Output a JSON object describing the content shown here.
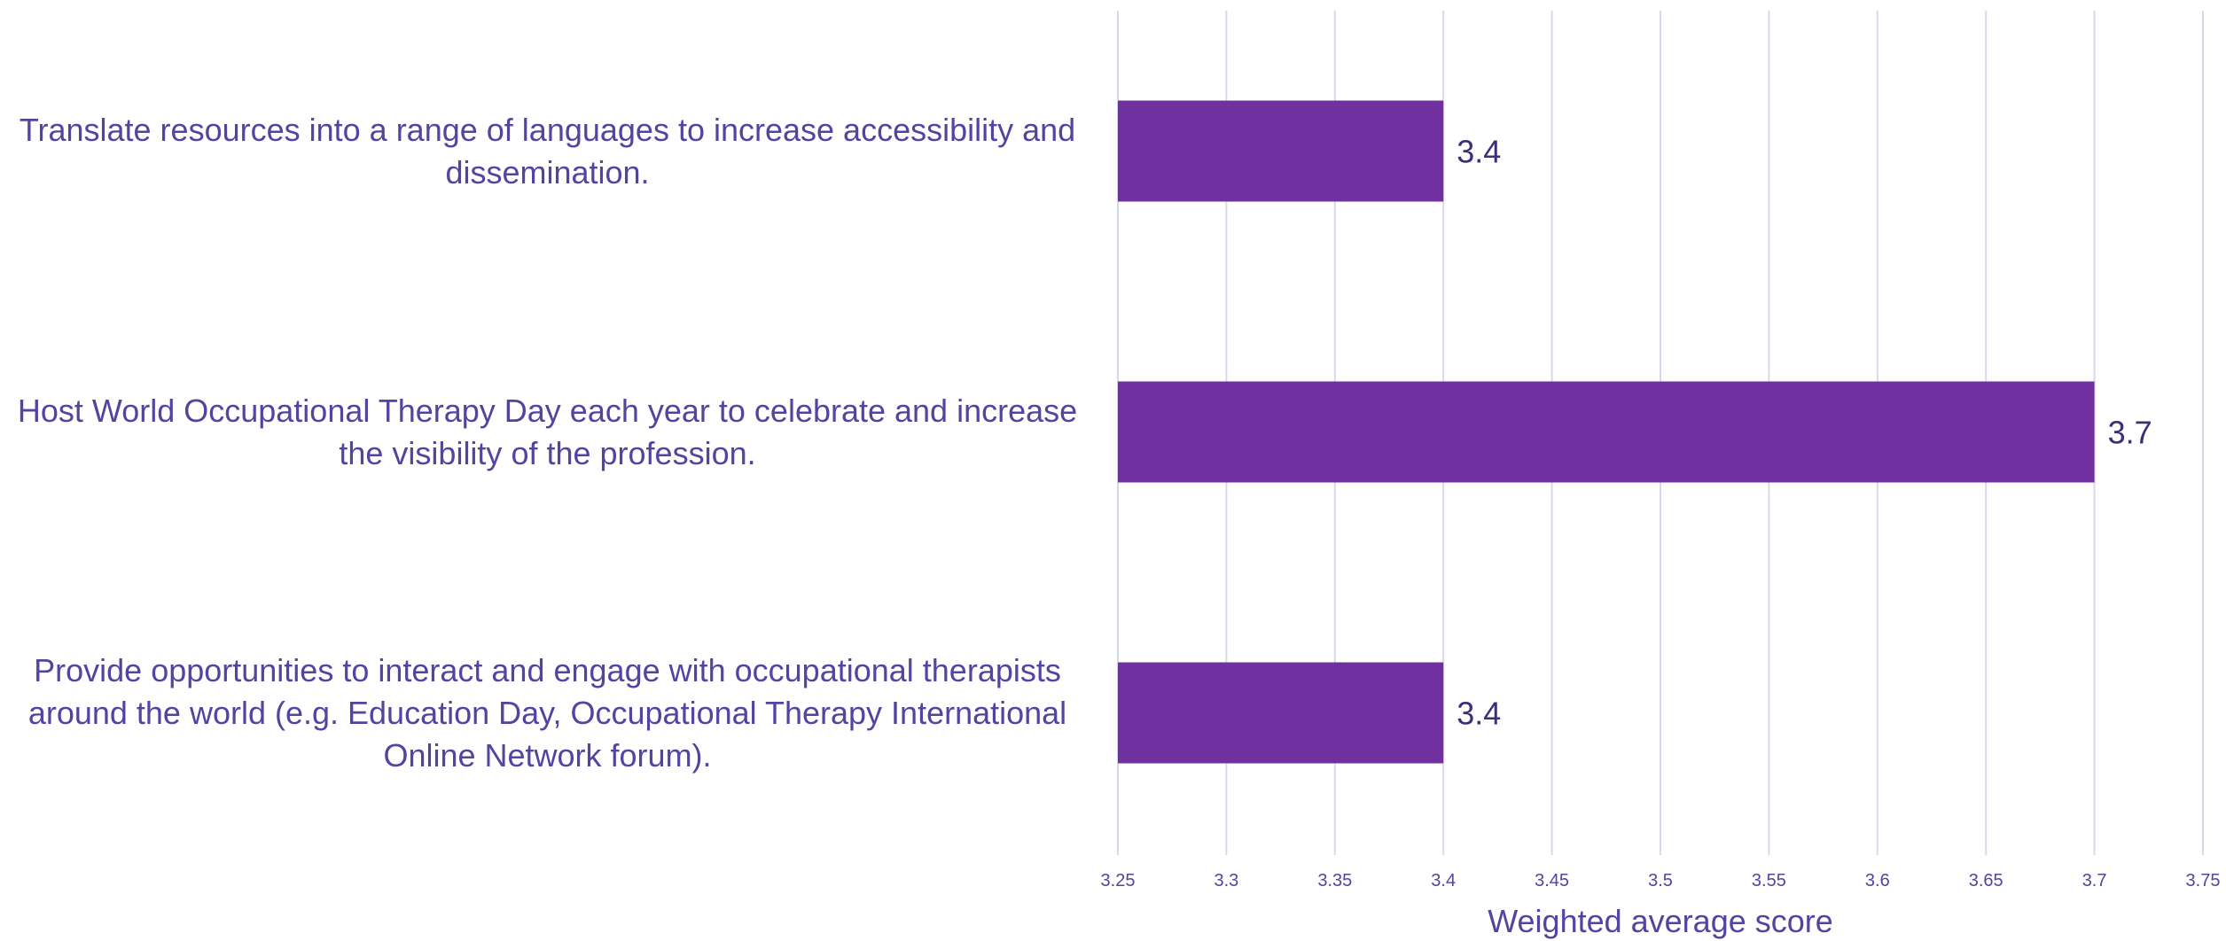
{
  "chart_data": {
    "type": "bar",
    "orientation": "horizontal",
    "categories": [
      "Translate resources into a range of languages to increase accessibility and dissemination.",
      "Host World Occupational Therapy Day each year to celebrate and increase the visibility of the profession.",
      "Provide opportunities to interact and engage with occupational therapists around the world (e.g. Education Day, Occupational Therapy International Online Network forum)."
    ],
    "values": [
      3.4,
      3.7,
      3.4
    ],
    "data_labels": [
      "3.4",
      "3.7",
      "3.4"
    ],
    "title": "",
    "xlabel": "Weighted average score",
    "ylabel": "",
    "xlim": [
      3.25,
      3.75
    ],
    "x_ticks": [
      "3.25",
      "3.3",
      "3.35",
      "3.4",
      "3.45",
      "3.5",
      "3.55",
      "3.6",
      "3.65",
      "3.7",
      "3.75"
    ],
    "grid": "vertical",
    "legend": "none",
    "colors": {
      "bar": "#7030a0",
      "grid": "#d9d8ea",
      "text": "#5443a0",
      "data_label": "#3b2f7a"
    }
  }
}
